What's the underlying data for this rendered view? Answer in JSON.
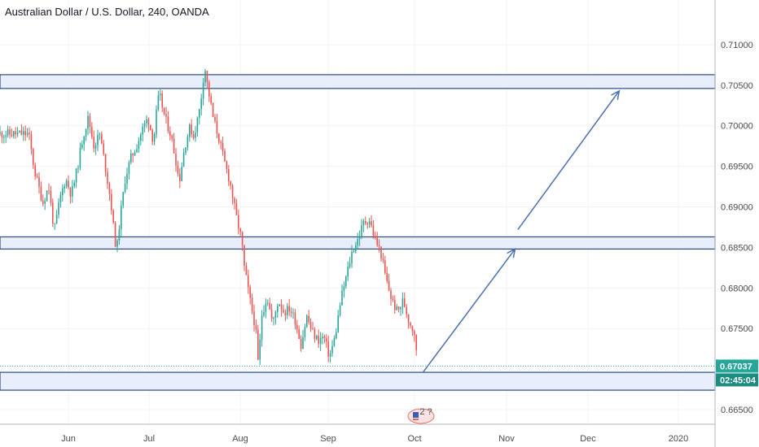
{
  "chart_data": {
    "type": "candlestick",
    "title": "Australian Dollar / U.S. Dollar, 240, OANDA",
    "x_ticks": [
      "Jun",
      "Jul",
      "Aug",
      "Sep",
      "Oct",
      "Nov",
      "Dec",
      "2020"
    ],
    "y_ticks": [
      "0.71000",
      "0.70500",
      "0.70000",
      "0.69500",
      "0.69000",
      "0.68500",
      "0.68000",
      "0.67500",
      "0.67000",
      "0.66500"
    ],
    "ylim": [
      0.6642,
      0.7122
    ],
    "grid": true,
    "last_price": {
      "label": "0.67037",
      "value": 0.67037
    },
    "countdown": "02:45:04",
    "event_marker": "2 ?",
    "zones": [
      {
        "from": 0.7046,
        "to": 0.7063
      },
      {
        "from": 0.6848,
        "to": 0.6863
      },
      {
        "from": 0.6674,
        "to": 0.6696
      }
    ],
    "arrows": [
      {
        "from": [
          "Oct+3",
          0.6696
        ],
        "to": [
          "Nov+3",
          0.6848
        ]
      },
      {
        "from": [
          "Nov+4",
          0.6872
        ],
        "to": [
          "Dec+11",
          0.7043
        ]
      }
    ],
    "price_path": [
      {
        "d": "May 18",
        "p": 0.699
      },
      {
        "d": "May 20",
        "p": 0.6945
      },
      {
        "d": "May 23",
        "p": 0.6905
      },
      {
        "d": "May 25",
        "p": 0.6925
      },
      {
        "d": "May 27",
        "p": 0.687
      },
      {
        "d": "May 29",
        "p": 0.691
      },
      {
        "d": "May 31",
        "p": 0.6935
      },
      {
        "d": "Jun 2",
        "p": 0.6915
      },
      {
        "d": "Jun 4",
        "p": 0.6945
      },
      {
        "d": "Jun 6",
        "p": 0.6985
      },
      {
        "d": "Jun 8",
        "p": 0.701
      },
      {
        "d": "Jun 10",
        "p": 0.6975
      },
      {
        "d": "Jun 12",
        "p": 0.699
      },
      {
        "d": "Jun 14",
        "p": 0.695
      },
      {
        "d": "Jun 16",
        "p": 0.6905
      },
      {
        "d": "Jun 17",
        "p": 0.687
      },
      {
        "d": "Jun 18",
        "p": 0.6845
      },
      {
        "d": "Jun 19",
        "p": 0.688
      },
      {
        "d": "Jun 21",
        "p": 0.6935
      },
      {
        "d": "Jun 23",
        "p": 0.696
      },
      {
        "d": "Jun 25",
        "p": 0.6975
      },
      {
        "d": "Jun 27",
        "p": 0.6995
      },
      {
        "d": "Jun 29",
        "p": 0.701
      },
      {
        "d": "Jul 1",
        "p": 0.698
      },
      {
        "d": "Jul 2",
        "p": 0.7015
      },
      {
        "d": "Jul 3",
        "p": 0.704
      },
      {
        "d": "Jul 5",
        "p": 0.701
      },
      {
        "d": "Jul 7",
        "p": 0.699
      },
      {
        "d": "Jul 9",
        "p": 0.6955
      },
      {
        "d": "Jul 10",
        "p": 0.693
      },
      {
        "d": "Jul 12",
        "p": 0.6975
      },
      {
        "d": "Jul 14",
        "p": 0.7
      },
      {
        "d": "Jul 15",
        "p": 0.6985
      },
      {
        "d": "Jul 17",
        "p": 0.7015
      },
      {
        "d": "Jul 18",
        "p": 0.704
      },
      {
        "d": "Jul 19",
        "p": 0.7075
      },
      {
        "d": "Jul 20",
        "p": 0.705
      },
      {
        "d": "Jul 22",
        "p": 0.701
      },
      {
        "d": "Jul 24",
        "p": 0.6985
      },
      {
        "d": "Jul 26",
        "p": 0.6955
      },
      {
        "d": "Jul 28",
        "p": 0.693
      },
      {
        "d": "Jul 30",
        "p": 0.689
      },
      {
        "d": "Aug 1",
        "p": 0.686
      },
      {
        "d": "Aug 2",
        "p": 0.6825
      },
      {
        "d": "Aug 4",
        "p": 0.6785
      },
      {
        "d": "Aug 6",
        "p": 0.675
      },
      {
        "d": "Aug 7",
        "p": 0.67
      },
      {
        "d": "Aug 8",
        "p": 0.6765
      },
      {
        "d": "Aug 10",
        "p": 0.679
      },
      {
        "d": "Aug 12",
        "p": 0.6755
      },
      {
        "d": "Aug 14",
        "p": 0.6785
      },
      {
        "d": "Aug 16",
        "p": 0.677
      },
      {
        "d": "Aug 18",
        "p": 0.6775
      },
      {
        "d": "Aug 20",
        "p": 0.676
      },
      {
        "d": "Aug 22",
        "p": 0.673
      },
      {
        "d": "Aug 24",
        "p": 0.6765
      },
      {
        "d": "Aug 26",
        "p": 0.6745
      },
      {
        "d": "Aug 28",
        "p": 0.6735
      },
      {
        "d": "Aug 30",
        "p": 0.674
      },
      {
        "d": "Sep 1",
        "p": 0.6715
      },
      {
        "d": "Sep 3",
        "p": 0.674
      },
      {
        "d": "Sep 5",
        "p": 0.6785
      },
      {
        "d": "Sep 7",
        "p": 0.6815
      },
      {
        "d": "Sep 9",
        "p": 0.6845
      },
      {
        "d": "Sep 11",
        "p": 0.686
      },
      {
        "d": "Sep 13",
        "p": 0.688
      },
      {
        "d": "Sep 15",
        "p": 0.6885
      },
      {
        "d": "Sep 17",
        "p": 0.686
      },
      {
        "d": "Sep 19",
        "p": 0.6845
      },
      {
        "d": "Sep 21",
        "p": 0.681
      },
      {
        "d": "Sep 23",
        "p": 0.6785
      },
      {
        "d": "Sep 25",
        "p": 0.677
      },
      {
        "d": "Sep 27",
        "p": 0.6785
      },
      {
        "d": "Sep 29",
        "p": 0.676
      },
      {
        "d": "Oct 1",
        "p": 0.6745
      },
      {
        "d": "Oct 2",
        "p": 0.6705
      }
    ]
  },
  "colors": {
    "up": "#26a69a",
    "down": "#ef5350",
    "zone_fill": "#e8eefc",
    "zone_border": "#2a4a80",
    "arrow": "#4a6fb0",
    "price_tag": "#26a69a",
    "countdown_tag": "#1a8c80",
    "grid": "#f0f3fa",
    "axis_text": "#4a4a4a"
  }
}
